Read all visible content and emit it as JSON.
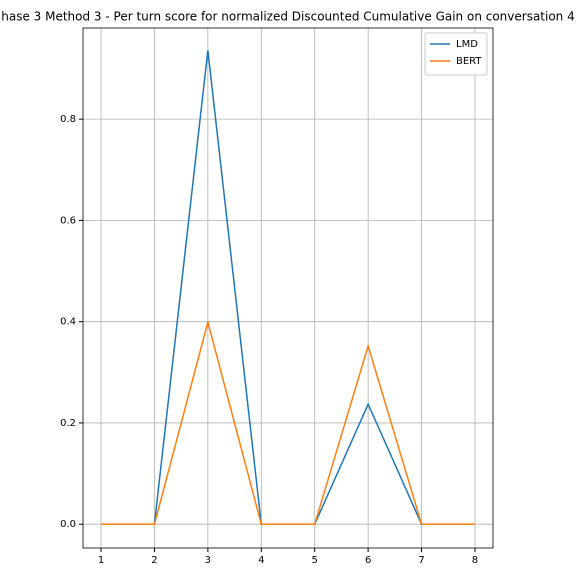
{
  "chart_data": {
    "type": "line",
    "title": "hase 3 Method 3 - Per turn score for normalized Discounted Cumulative Gain on conversation 4",
    "x": [
      1,
      2,
      3,
      4,
      5,
      6,
      7,
      8
    ],
    "series": [
      {
        "name": "LMD",
        "color": "#1f77b4",
        "values": [
          0,
          0,
          0.936,
          0,
          0,
          0.237,
          0,
          0
        ]
      },
      {
        "name": "BERT",
        "color": "#ff7f0e",
        "values": [
          0,
          0,
          0.399,
          0,
          0,
          0.352,
          0,
          0
        ]
      }
    ],
    "xlim": [
      0.663,
      8.337
    ],
    "xticks": [
      1,
      2,
      3,
      4,
      5,
      6,
      7,
      8
    ],
    "ylim": [
      -0.047,
      0.98
    ],
    "yticks": [
      0.0,
      0.2,
      0.4,
      0.6,
      0.8
    ],
    "grid": true,
    "legend": "upper right"
  }
}
